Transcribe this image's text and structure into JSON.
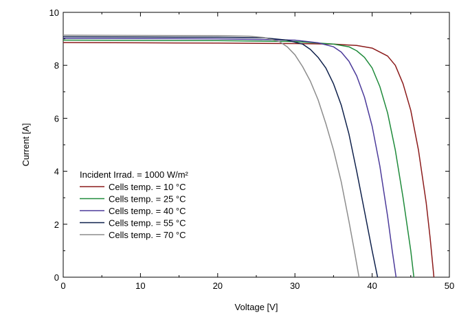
{
  "chart_data": {
    "type": "line",
    "title": "",
    "xlabel": "Voltage [V]",
    "ylabel": "Current [A]",
    "xlim": [
      0,
      50
    ],
    "ylim": [
      0,
      10
    ],
    "xticks": [
      "0",
      "10",
      "20",
      "30",
      "40",
      "50"
    ],
    "yticks": [
      "0",
      "2",
      "4",
      "6",
      "8",
      "10"
    ],
    "grid": false,
    "legend_title": "Incident Irrad. = 1000 W/m²",
    "legend_position": "lower-left",
    "series": [
      {
        "name": "Cells temp. = 10 °C",
        "color": "#8b1a1a",
        "x": [
          0,
          10,
          20,
          30,
          35,
          38,
          40,
          42,
          43,
          44,
          45,
          46,
          47,
          47.5,
          48
        ],
        "y": [
          8.86,
          8.85,
          8.84,
          8.82,
          8.8,
          8.75,
          8.65,
          8.35,
          8.0,
          7.3,
          6.3,
          4.8,
          2.8,
          1.5,
          0
        ]
      },
      {
        "name": "Cells temp. = 25 °C",
        "color": "#1e8a3a",
        "x": [
          0,
          10,
          20,
          30,
          35,
          37,
          38,
          39,
          40,
          41,
          42,
          43,
          44,
          45,
          45.4
        ],
        "y": [
          8.95,
          8.94,
          8.93,
          8.9,
          8.8,
          8.7,
          8.55,
          8.3,
          7.9,
          7.2,
          6.2,
          4.8,
          3.0,
          1.0,
          0
        ]
      },
      {
        "name": "Cells temp. = 40 °C",
        "color": "#4b3a9a",
        "x": [
          0,
          10,
          20,
          30,
          33,
          35,
          36,
          37,
          38,
          39,
          40,
          41,
          42,
          42.6,
          43.1
        ],
        "y": [
          9.02,
          9.01,
          9.0,
          8.95,
          8.85,
          8.7,
          8.5,
          8.15,
          7.6,
          6.8,
          5.7,
          4.2,
          2.3,
          1.0,
          0
        ]
      },
      {
        "name": "Cells temp. = 55 °C",
        "color": "#0d1f4a",
        "x": [
          0,
          10,
          20,
          26,
          29,
          31,
          32,
          33,
          34,
          35,
          36,
          37,
          38,
          39,
          40,
          40.7
        ],
        "y": [
          9.08,
          9.07,
          9.06,
          9.04,
          8.95,
          8.8,
          8.6,
          8.3,
          7.9,
          7.3,
          6.5,
          5.4,
          4.0,
          2.5,
          1.0,
          0
        ]
      },
      {
        "name": "Cells temp. = 70 °C",
        "color": "#8c8c8c",
        "x": [
          0,
          10,
          20,
          24,
          26,
          28,
          29,
          30,
          31,
          32,
          33,
          34,
          35,
          36,
          37,
          37.7,
          38.3
        ],
        "y": [
          9.14,
          9.13,
          9.12,
          9.1,
          9.05,
          8.9,
          8.7,
          8.4,
          7.95,
          7.4,
          6.7,
          5.8,
          4.8,
          3.6,
          2.1,
          1.0,
          0
        ]
      }
    ]
  }
}
